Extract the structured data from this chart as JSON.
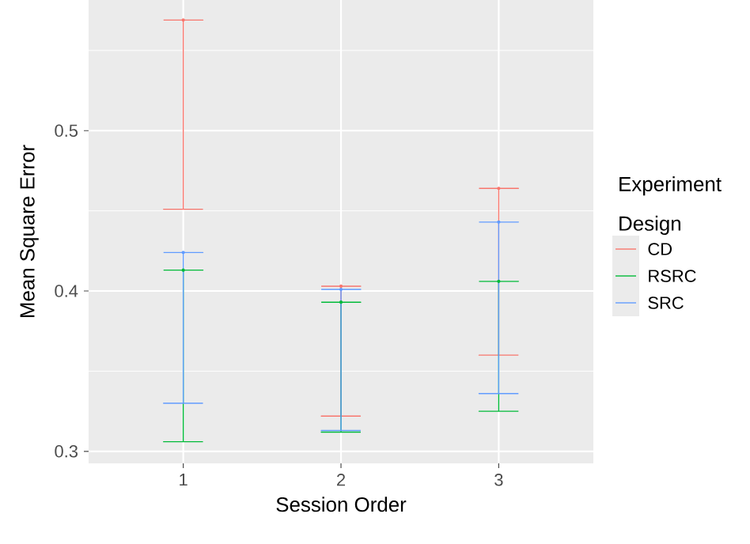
{
  "chart_data": {
    "type": "scatter",
    "xlabel": "Session Order",
    "ylabel": "Mean Square Error",
    "legend_title": "Experiment Design",
    "x": [
      1,
      2,
      3
    ],
    "xlim": [
      0.4,
      3.6
    ],
    "xticks": [
      1,
      2,
      3
    ],
    "ylim": [
      0.2925,
      0.5815
    ],
    "yticks": [
      0.3,
      {
        "value": 0.35,
        "label": null
      },
      0.4,
      {
        "value": 0.45,
        "label": null
      },
      0.5,
      {
        "value": 0.55,
        "label": null
      }
    ],
    "grid": true,
    "legend": "right",
    "marker": "none",
    "series": [
      {
        "name": "CD",
        "color": "#f8766d",
        "values": [
          0.569,
          0.403,
          0.464
        ],
        "errors": [
          [
            0.451,
            0.569
          ],
          [
            0.322,
            0.403
          ],
          [
            0.36,
            0.464
          ]
        ]
      },
      {
        "name": "RSRC",
        "color": "#00ba38",
        "values": [
          0.413,
          0.393,
          0.406
        ],
        "errors": [
          [
            0.306,
            0.413
          ],
          [
            0.312,
            0.393
          ],
          [
            0.325,
            0.406
          ]
        ]
      },
      {
        "name": "SRC",
        "color": "#619cff",
        "values": [
          0.424,
          0.401,
          0.443
        ],
        "errors": [
          [
            0.33,
            0.424
          ],
          [
            0.313,
            0.401
          ],
          [
            0.336,
            0.443
          ]
        ]
      }
    ]
  }
}
